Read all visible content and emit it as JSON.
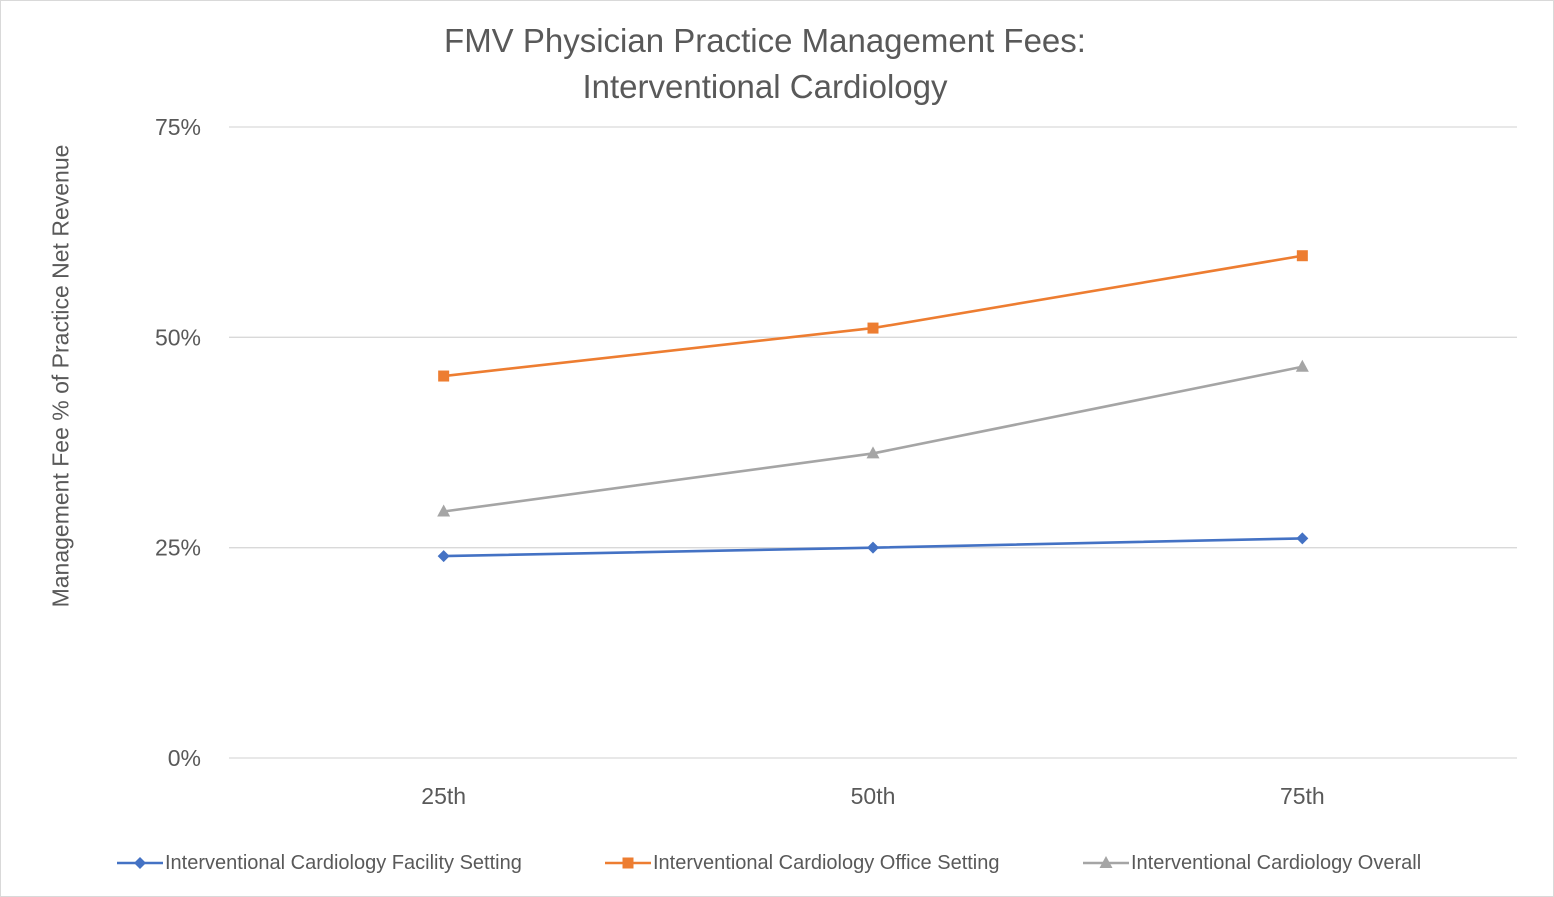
{
  "chart_data": {
    "type": "line",
    "title": [
      "FMV Physician Practice Management Fees:",
      "Interventional Cardiology"
    ],
    "xlabel": "",
    "ylabel": "Management Fee % of Practice Net Revenue",
    "categories": [
      "25th",
      "50th",
      "75th"
    ],
    "ylim": [
      0,
      75
    ],
    "yticks": [
      0,
      25,
      50,
      75
    ],
    "ytick_labels": [
      "0%",
      "25%",
      "50%",
      "75%"
    ],
    "grid": true,
    "legend_position": "bottom",
    "series": [
      {
        "name": "Interventional Cardiology Facility Setting",
        "values": [
          24,
          25,
          26.1
        ],
        "color": "#4472c4",
        "marker": "diamond"
      },
      {
        "name": "Interventional Cardiology Office Setting",
        "values": [
          45.4,
          51.1,
          59.7
        ],
        "color": "#ed7d31",
        "marker": "square"
      },
      {
        "name": "Interventional Cardiology Overall",
        "values": [
          29.3,
          36.2,
          46.5
        ],
        "color": "#a5a5a5",
        "marker": "triangle"
      }
    ]
  }
}
